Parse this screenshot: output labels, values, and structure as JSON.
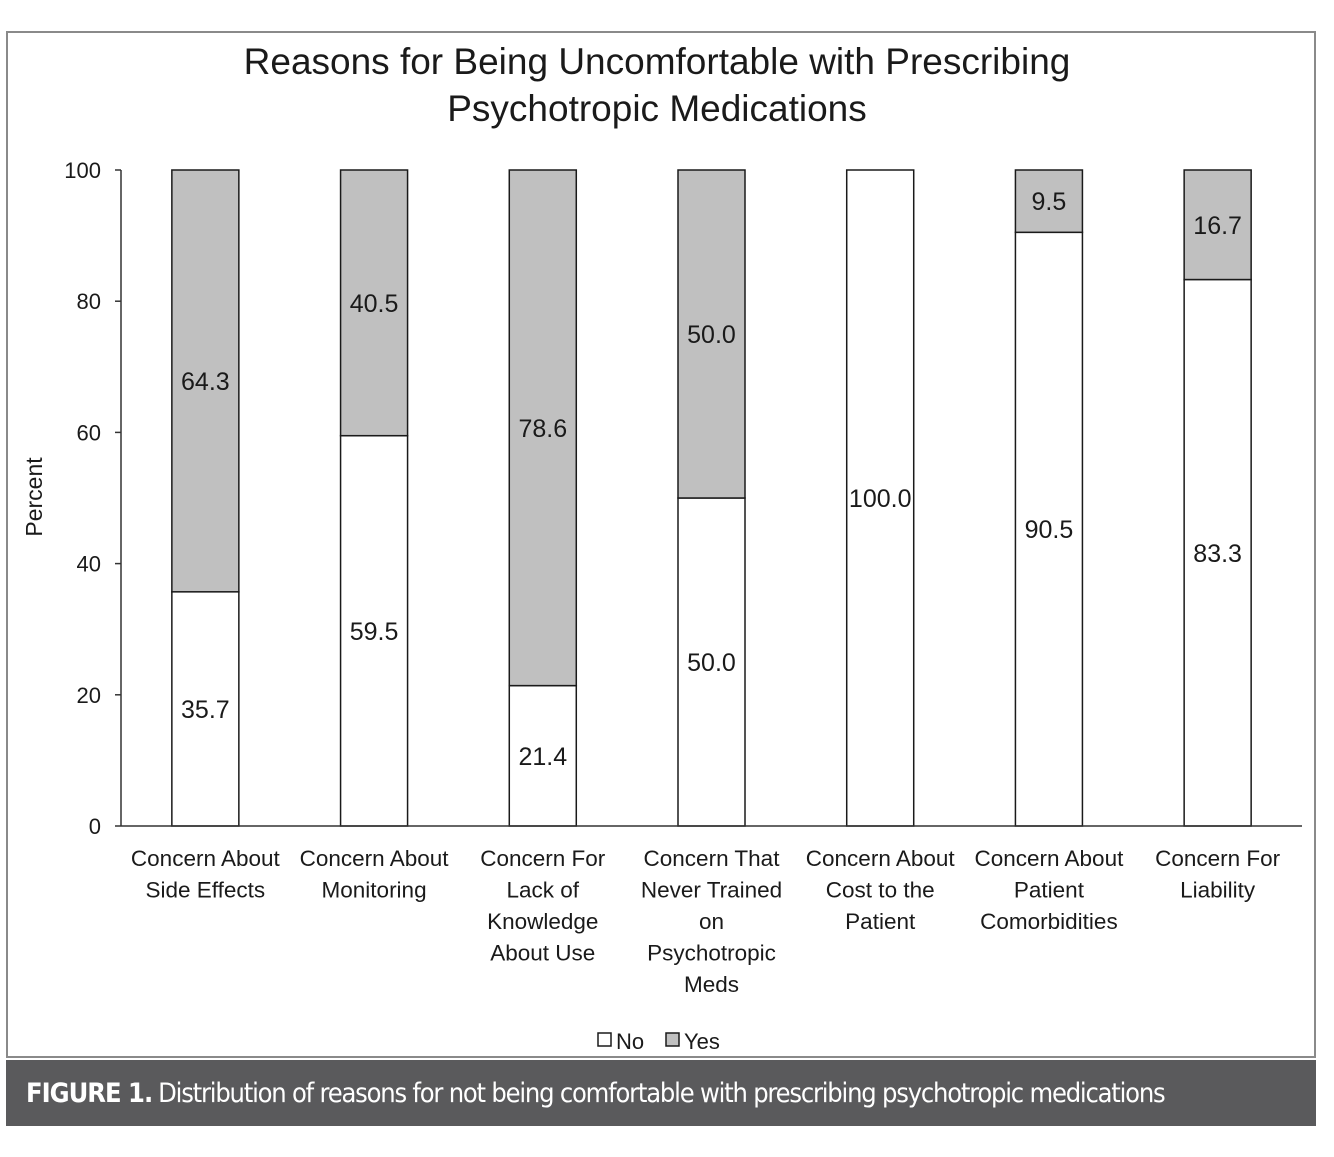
{
  "chart_data": {
    "type": "bar",
    "stacked": true,
    "title_line1": "Reasons for Being Uncomfortable with Prescribing",
    "title_line2": "Psychotropic Medications",
    "ylabel": "Percent",
    "xlabel": "",
    "ylim": [
      0,
      100
    ],
    "yticks": [
      0,
      20,
      40,
      60,
      80,
      100
    ],
    "grid": false,
    "legend_position": "bottom",
    "categories": [
      [
        "Concern About",
        "Side Effects"
      ],
      [
        "Concern About",
        "Monitoring"
      ],
      [
        "Concern For",
        "Lack of",
        "Knowledge",
        "About Use"
      ],
      [
        "Concern That",
        "Never Trained",
        "on",
        "Psychotropic",
        "Meds"
      ],
      [
        "Concern About",
        "Cost to the",
        "Patient"
      ],
      [
        "Concern About",
        "Patient",
        "Comorbidities"
      ],
      [
        "Concern For",
        "Liability"
      ]
    ],
    "series": [
      {
        "name": "No",
        "color": "#ffffff",
        "values": [
          35.7,
          59.5,
          21.4,
          50.0,
          100.0,
          90.5,
          83.3
        ],
        "labels": [
          "35.7",
          "59.5",
          "21.4",
          "50.0",
          "100.0",
          "90.5",
          "83.3"
        ]
      },
      {
        "name": "Yes",
        "color": "#c0c0c0",
        "values": [
          64.3,
          40.5,
          78.6,
          50.0,
          0,
          9.5,
          16.7
        ],
        "labels": [
          "64.3",
          "40.5",
          "78.6",
          "50.0",
          "",
          "9.5",
          "16.7"
        ]
      }
    ]
  },
  "caption": {
    "label": "FIGURE 1.",
    "text": "Distribution of reasons for not being comfortable with prescribing psychotropic medications"
  }
}
